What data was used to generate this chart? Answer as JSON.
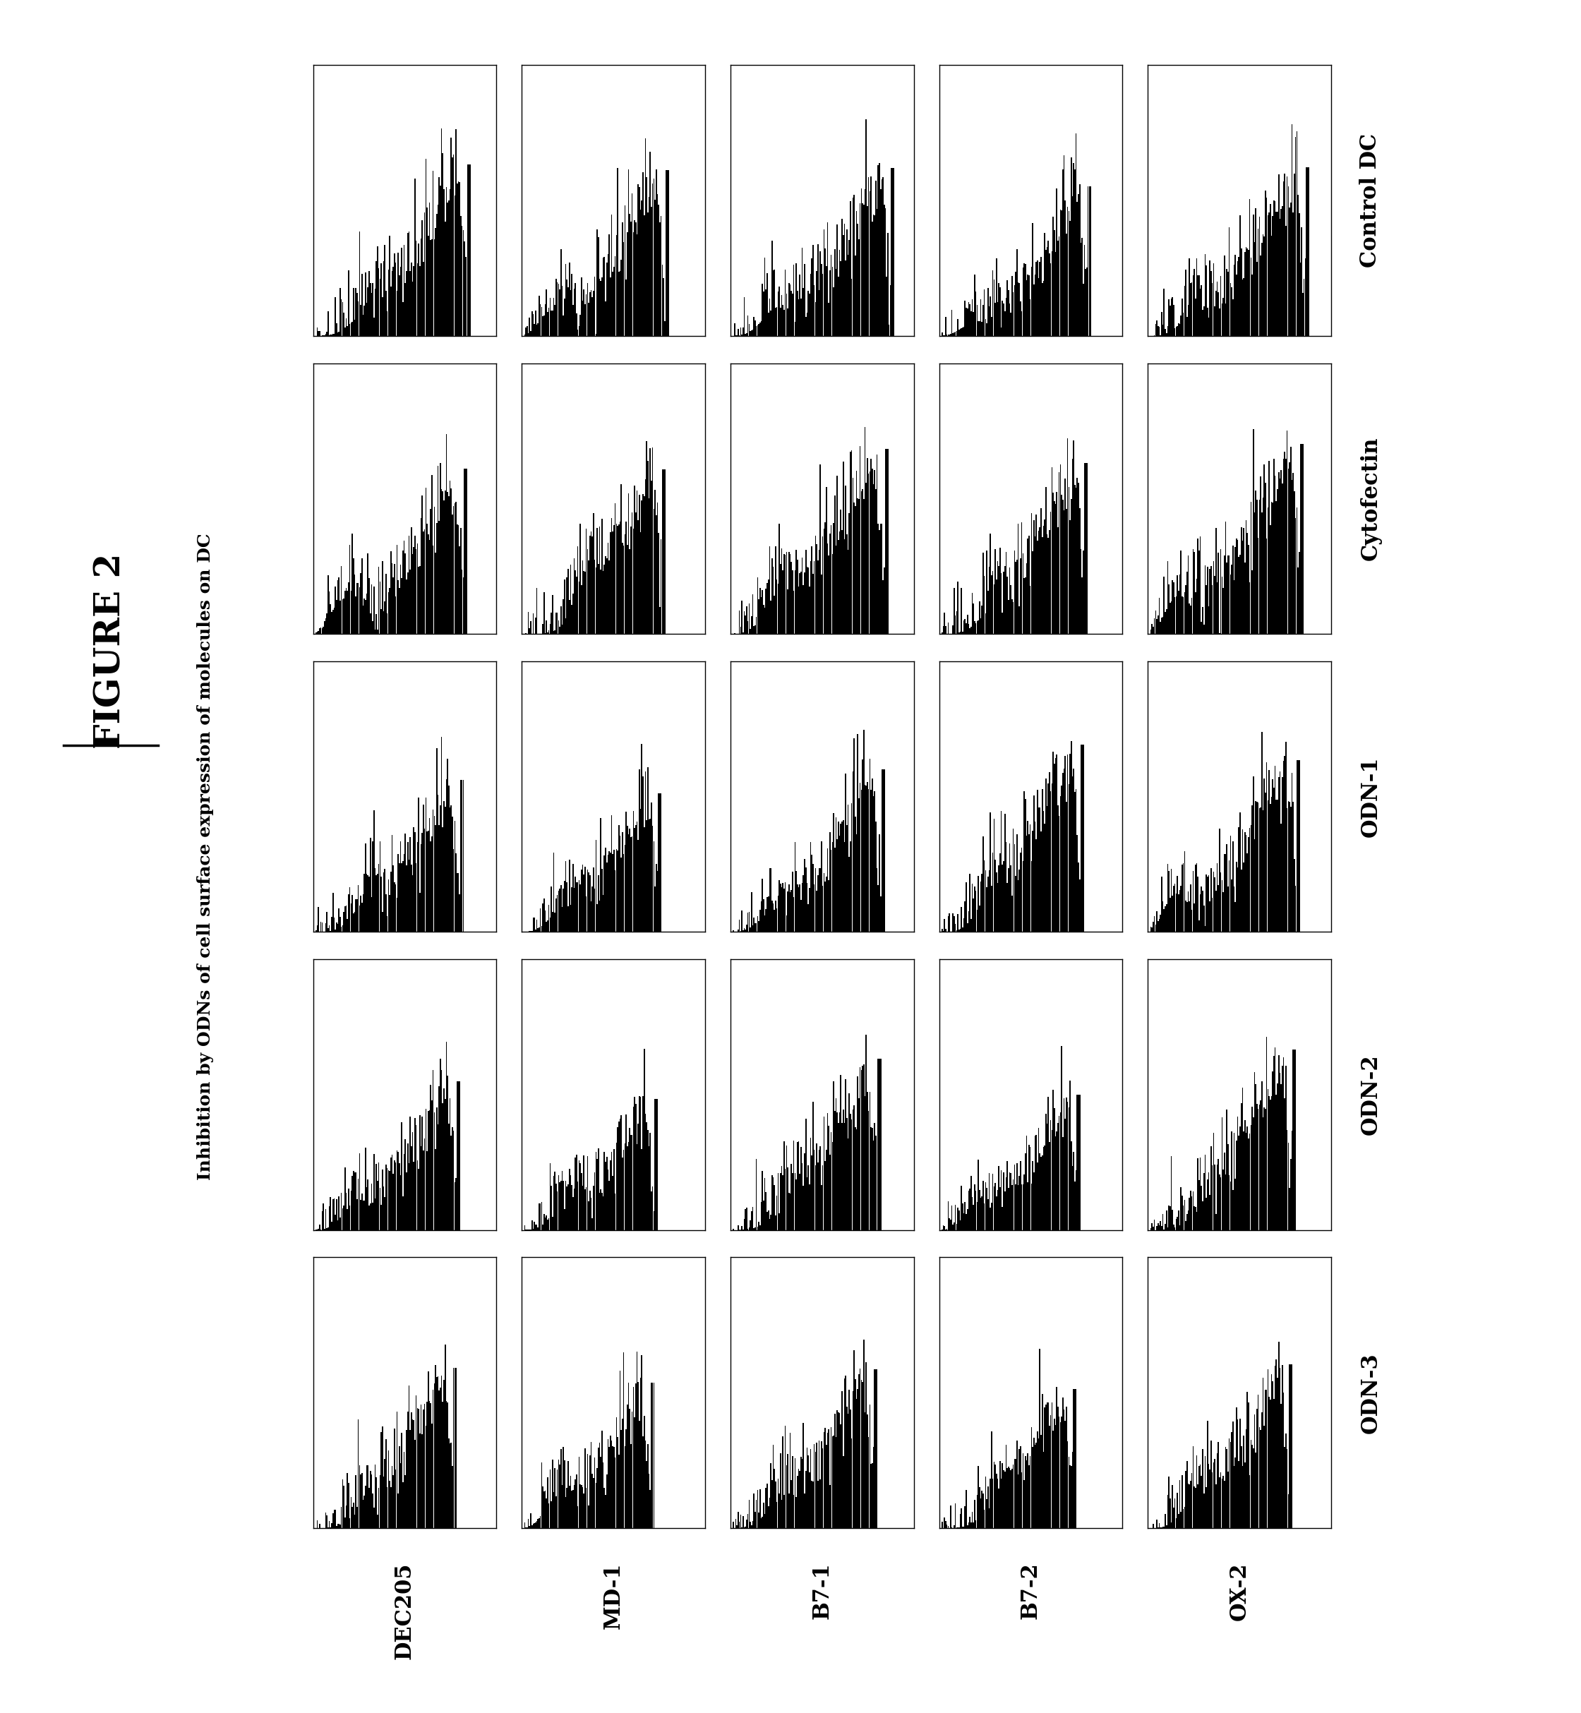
{
  "title": "FIGURE 2",
  "ylabel": "Inhibition by ODNs of cell surface expression of molecules on DC",
  "col_labels": [
    "DEC205",
    "MD-1",
    "B7-1",
    "B7-2",
    "OX-2"
  ],
  "row_labels": [
    "Control DC",
    "Cytofectin",
    "ODN-1",
    "ODN-2",
    "ODN-3"
  ],
  "n_rows": 5,
  "n_cols": 5,
  "bg_color": "#ffffff",
  "hist_color": "#000000",
  "title_fontsize": 36,
  "label_fontsize": 22,
  "ylabel_fontsize": 18
}
